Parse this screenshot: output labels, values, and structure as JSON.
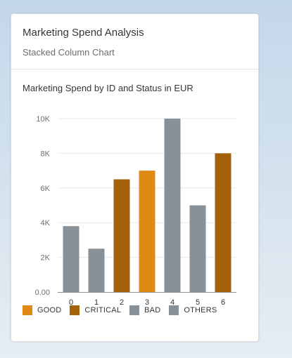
{
  "card": {
    "title": "Marketing Spend Analysis",
    "subtitle": "Stacked Column Chart"
  },
  "colors": {
    "GOOD": "#e08a15",
    "CRITICAL": "#a3610a",
    "BAD": "#879197",
    "OTHERS": "#879197",
    "axis": "#6a6d70",
    "grid": "#e8e8e8"
  },
  "chart_data": {
    "type": "bar",
    "title": "Marketing Spend by ID and Status in EUR",
    "xlabel": "",
    "ylabel": "",
    "categories": [
      "0",
      "1",
      "2",
      "3",
      "4",
      "5",
      "6"
    ],
    "values": [
      3800,
      2500,
      6500,
      7000,
      10000,
      5000,
      8000
    ],
    "status": [
      "BAD",
      "BAD",
      "CRITICAL",
      "GOOD",
      "BAD",
      "BAD",
      "CRITICAL"
    ],
    "ylim": [
      0,
      10000
    ],
    "yticks": [
      {
        "value": 0,
        "label": "0.00"
      },
      {
        "value": 2000,
        "label": "2K"
      },
      {
        "value": 4000,
        "label": "4K"
      },
      {
        "value": 6000,
        "label": "6K"
      },
      {
        "value": 8000,
        "label": "8K"
      },
      {
        "value": 10000,
        "label": "10K"
      }
    ],
    "grid": true,
    "legend": [
      "GOOD",
      "CRITICAL",
      "BAD",
      "OTHERS"
    ],
    "legend_position": "bottom"
  }
}
